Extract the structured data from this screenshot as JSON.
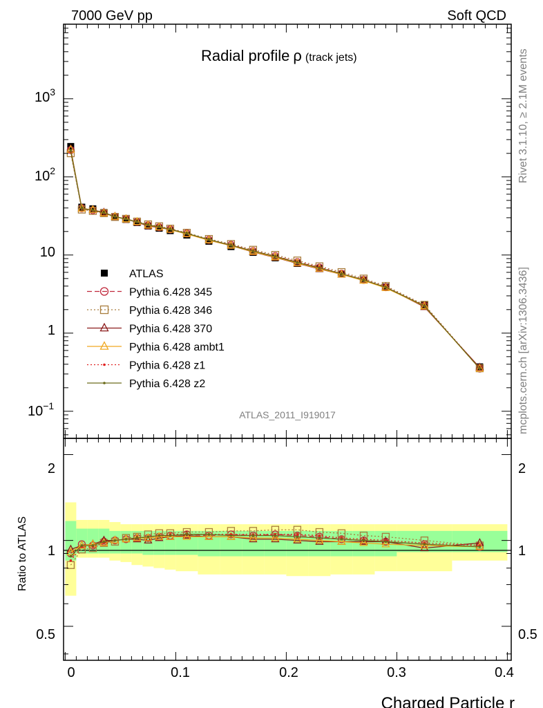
{
  "header": {
    "beam_label": "7000 GeV pp",
    "process_label": "Soft QCD",
    "rivet_label": "Rivet 3.1.10, ≥ 2.1M events",
    "site_label": "mcplots.cern.ch [arXiv:1306.3436]",
    "analysis_id": "ATLAS_2011_I919017"
  },
  "colors": {
    "atlas": "#000000",
    "p345": "#c0263a",
    "p346": "#a87c3c",
    "p370": "#8b1a1a",
    "ambt1": "#f0a820",
    "z1": "#e02020",
    "z2": "#6b6b1a",
    "band_inner": "#99ff99",
    "band_outer": "#ffff99"
  },
  "chart_data": {
    "type": "line",
    "title_main": "Radial profile",
    "title_symbol": "ρ",
    "title_suffix": "(track jets)",
    "xlabel": "Charged Particle r",
    "ylabel_ratio": "Ratio to ATLAS",
    "x_ticks": [
      "0",
      "0.1",
      "0.2",
      "0.3",
      "0.4"
    ],
    "xlim": [
      -0.0015,
      0.4035
    ],
    "ylim_main": [
      0.045,
      9000
    ],
    "ylim_ratio": [
      0.38,
      2.28
    ],
    "y_scale": "log",
    "main_tick_labels": {
      "e-1": "−1",
      "one": "1",
      "ten": "10",
      "e2": "2",
      "e3": "3",
      "base": "10"
    },
    "ratio_tick_labels": [
      "0.5",
      "1",
      "2"
    ],
    "x": [
      0.005,
      0.015,
      0.025,
      0.035,
      0.045,
      0.055,
      0.065,
      0.075,
      0.085,
      0.095,
      0.11,
      0.13,
      0.15,
      0.17,
      0.19,
      0.21,
      0.23,
      0.25,
      0.27,
      0.29,
      0.325,
      0.375
    ],
    "x_edges": [
      0,
      0.01,
      0.02,
      0.03,
      0.04,
      0.05,
      0.06,
      0.07,
      0.08,
      0.09,
      0.1,
      0.12,
      0.14,
      0.16,
      0.18,
      0.2,
      0.22,
      0.24,
      0.26,
      0.28,
      0.3,
      0.35,
      0.4
    ],
    "atlas": [
      245,
      41,
      39,
      35,
      31,
      28.5,
      26,
      23.5,
      22,
      20.5,
      18,
      15,
      12.8,
      10.8,
      9.2,
      7.8,
      6.7,
      5.7,
      4.8,
      3.9,
      2.3,
      0.37
    ],
    "band_inner": [
      [
        0.85,
        1.17
      ],
      [
        0.9,
        1.1
      ],
      [
        0.9,
        1.1
      ],
      [
        0.9,
        1.1
      ],
      [
        0.9,
        1.08
      ],
      [
        0.9,
        1.08
      ],
      [
        0.9,
        1.08
      ],
      [
        0.89,
        1.08
      ],
      [
        0.89,
        1.08
      ],
      [
        0.89,
        1.08
      ],
      [
        0.89,
        1.08
      ],
      [
        0.88,
        1.08
      ],
      [
        0.88,
        1.08
      ],
      [
        0.88,
        1.08
      ],
      [
        0.88,
        1.08
      ],
      [
        0.88,
        1.08
      ],
      [
        0.88,
        1.08
      ],
      [
        0.88,
        1.08
      ],
      [
        0.88,
        1.08
      ],
      [
        0.88,
        1.08
      ],
      [
        0.91,
        1.08
      ],
      [
        0.91,
        1.08
      ]
    ],
    "band_outer": [
      [
        0.64,
        1.36
      ],
      [
        0.87,
        1.18
      ],
      [
        0.87,
        1.18
      ],
      [
        0.87,
        1.18
      ],
      [
        0.85,
        1.16
      ],
      [
        0.84,
        1.14
      ],
      [
        0.82,
        1.14
      ],
      [
        0.81,
        1.14
      ],
      [
        0.8,
        1.14
      ],
      [
        0.79,
        1.14
      ],
      [
        0.78,
        1.14
      ],
      [
        0.76,
        1.14
      ],
      [
        0.76,
        1.14
      ],
      [
        0.76,
        1.14
      ],
      [
        0.76,
        1.14
      ],
      [
        0.75,
        1.14
      ],
      [
        0.75,
        1.14
      ],
      [
        0.76,
        1.14
      ],
      [
        0.76,
        1.14
      ],
      [
        0.78,
        1.14
      ],
      [
        0.78,
        1.14
      ],
      [
        0.85,
        1.14
      ]
    ],
    "series": [
      {
        "name": "ATLAS",
        "key": "atlas",
        "marker": "square",
        "line": "none"
      },
      {
        "name": "Pythia 6.428 345",
        "key": "p345",
        "marker": "circle",
        "line": "dashed",
        "ratio": [
          0.9,
          0.97,
          0.96,
          0.99,
          1.0,
          1.01,
          1.02,
          1.02,
          1.03,
          1.04,
          1.05,
          1.04,
          1.05,
          1.04,
          1.05,
          1.04,
          1.03,
          1.01,
          1.0,
          0.99,
          0.97,
          0.95
        ]
      },
      {
        "name": "Pythia 6.428 346",
        "key": "p346",
        "marker": "open-square",
        "line": "dotted",
        "ratio": [
          0.82,
          0.93,
          0.94,
          0.98,
          0.99,
          1.02,
          1.03,
          1.05,
          1.06,
          1.06,
          1.07,
          1.07,
          1.08,
          1.08,
          1.09,
          1.09,
          1.07,
          1.06,
          1.04,
          1.03,
          1.0,
          0.96
        ]
      },
      {
        "name": "Pythia 6.428 370",
        "key": "p370",
        "marker": "triangle",
        "line": "solid",
        "ratio": [
          0.93,
          0.96,
          0.97,
          1.0,
          1.0,
          1.01,
          1.01,
          1.0,
          1.02,
          1.03,
          1.04,
          1.03,
          1.03,
          1.01,
          1.01,
          1.0,
          0.99,
          0.99,
          0.99,
          0.99,
          0.94,
          0.98
        ]
      },
      {
        "name": "Pythia 6.428 ambt1",
        "key": "ambt1",
        "marker": "triangle",
        "line": "solid",
        "ratio": [
          0.91,
          0.96,
          0.97,
          0.98,
          1.0,
          1.01,
          1.02,
          1.02,
          1.03,
          1.03,
          1.03,
          1.03,
          1.03,
          1.02,
          1.02,
          1.01,
          1.0,
          0.99,
          0.98,
          0.97,
          0.96,
          0.95
        ]
      },
      {
        "name": "Pythia 6.428 z1",
        "key": "z1",
        "marker": "dot",
        "line": "dotted",
        "ratio": [
          0.85,
          0.95,
          0.95,
          0.98,
          1.0,
          1.01,
          1.02,
          1.03,
          1.04,
          1.05,
          1.05,
          1.05,
          1.05,
          1.05,
          1.05,
          1.05,
          1.04,
          1.02,
          1.01,
          1.0,
          0.98,
          0.96
        ]
      },
      {
        "name": "Pythia 6.428 z2",
        "key": "z2",
        "marker": "dot",
        "line": "solid",
        "ratio": [
          0.88,
          0.96,
          0.96,
          0.99,
          1.0,
          1.01,
          1.02,
          1.03,
          1.04,
          1.04,
          1.05,
          1.05,
          1.04,
          1.04,
          1.04,
          1.03,
          1.02,
          1.01,
          1.0,
          0.99,
          0.97,
          0.95
        ]
      }
    ]
  }
}
